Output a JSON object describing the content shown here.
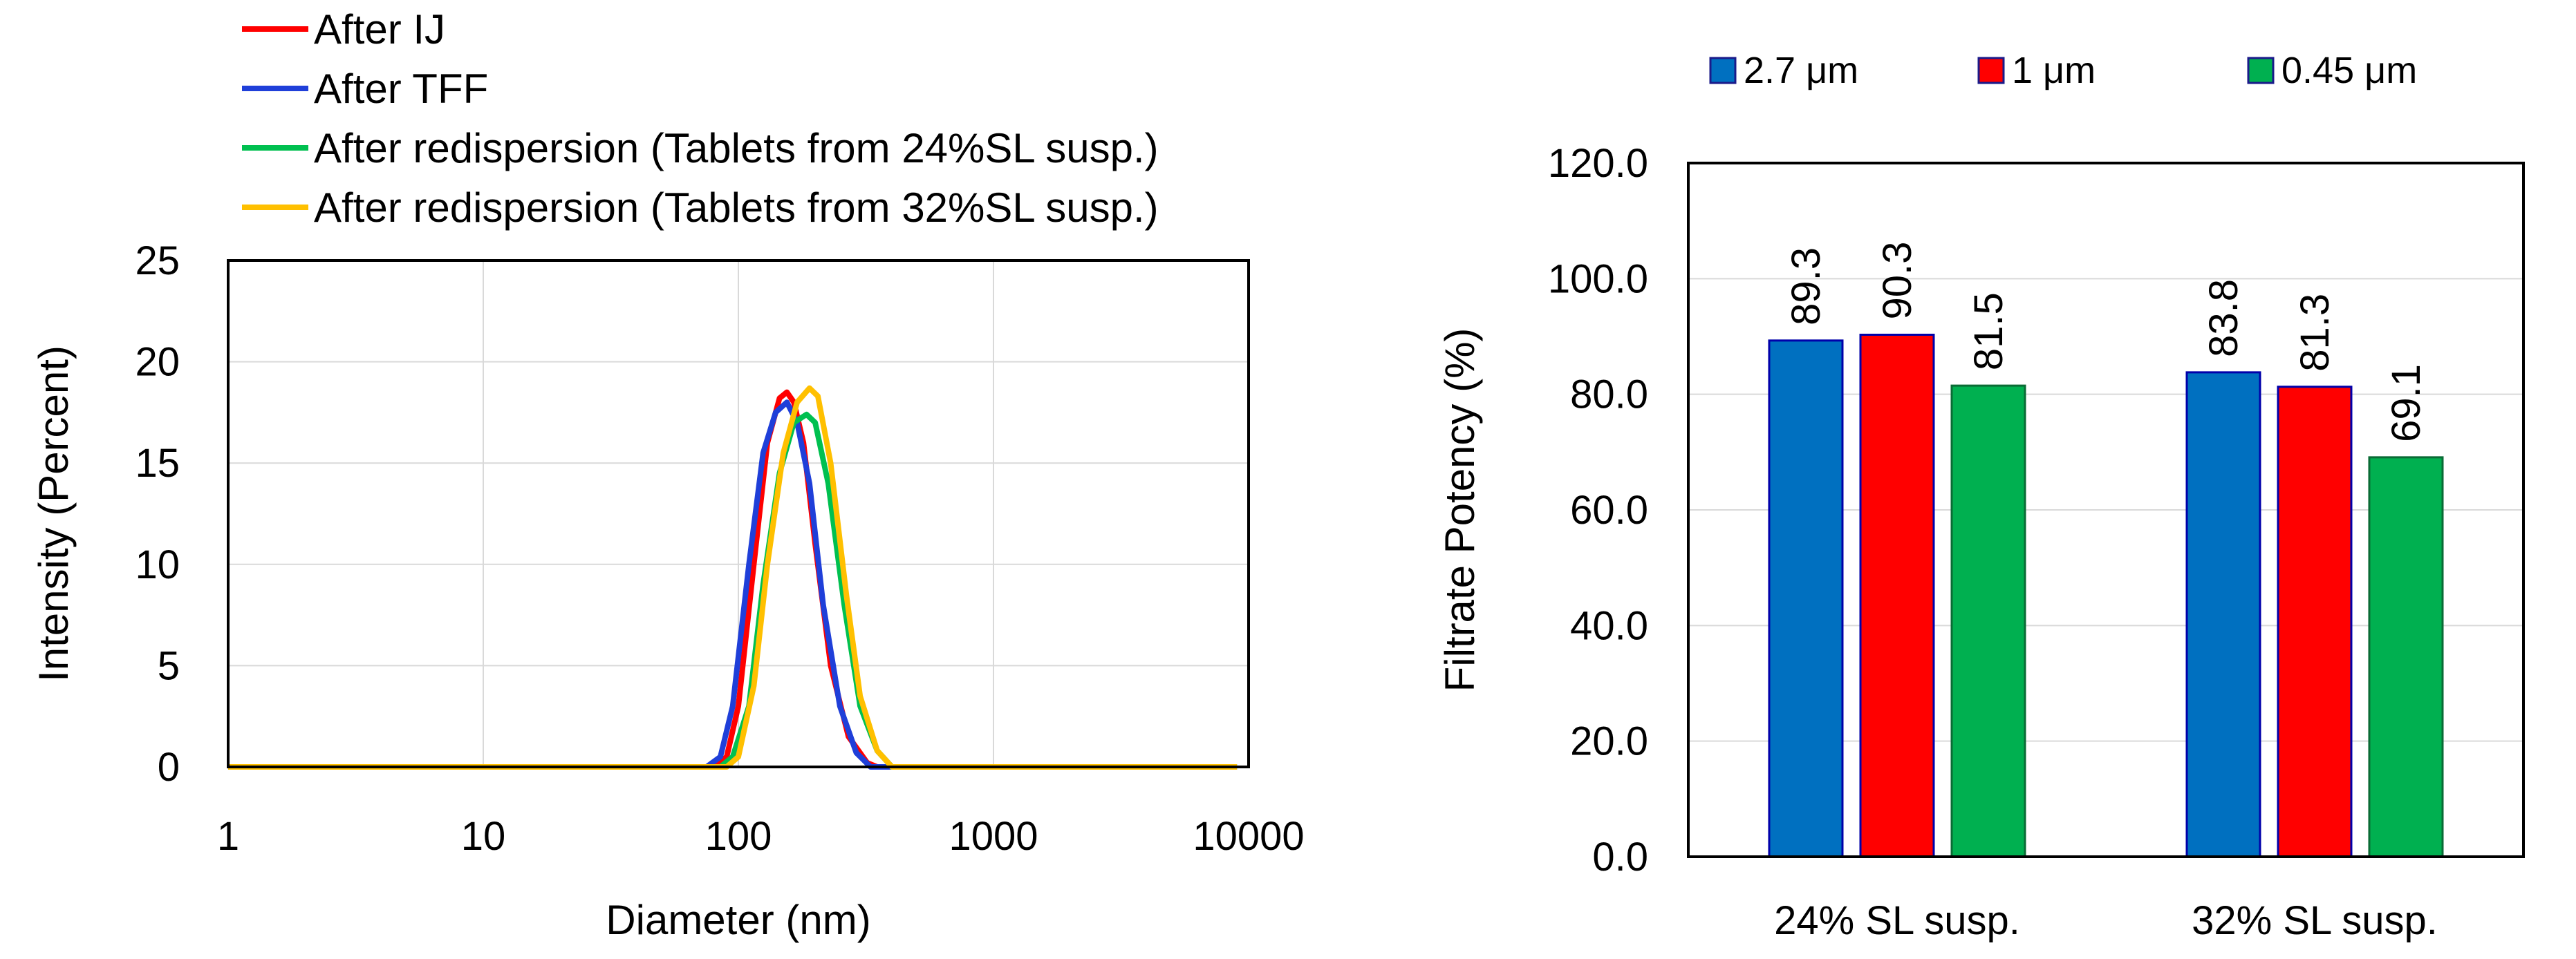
{
  "chart_data": [
    {
      "type": "line",
      "xlabel": "Diameter (nm)",
      "ylabel": "Intensity (Percent)",
      "xscale": "log",
      "xlim": [
        1,
        10000
      ],
      "ylim": [
        0,
        25
      ],
      "x_ticks": [
        "1",
        "10",
        "100",
        "1000",
        "10000"
      ],
      "y_ticks": [
        "0",
        "5",
        "10",
        "15",
        "20",
        "25"
      ],
      "grid": true,
      "legend_position": "top-left",
      "series": [
        {
          "name": "After IJ",
          "color": "#ff0000",
          "points": [
            [
              1,
              0
            ],
            [
              80,
              0
            ],
            [
              90,
              0.5
            ],
            [
              100,
              3
            ],
            [
              115,
              10
            ],
            [
              130,
              16
            ],
            [
              145,
              18.2
            ],
            [
              155,
              18.5
            ],
            [
              165,
              18
            ],
            [
              180,
              16
            ],
            [
              200,
              11
            ],
            [
              230,
              5
            ],
            [
              270,
              1.5
            ],
            [
              320,
              0.2
            ],
            [
              350,
              0
            ],
            [
              9000,
              0
            ]
          ]
        },
        {
          "name": "After TFF",
          "color": "#1f3fd9",
          "points": [
            [
              1,
              0
            ],
            [
              75,
              0
            ],
            [
              85,
              0.5
            ],
            [
              95,
              3
            ],
            [
              110,
              10
            ],
            [
              125,
              15.5
            ],
            [
              140,
              17.5
            ],
            [
              155,
              18
            ],
            [
              170,
              17
            ],
            [
              190,
              14
            ],
            [
              215,
              8
            ],
            [
              250,
              3
            ],
            [
              290,
              0.7
            ],
            [
              330,
              0
            ],
            [
              9000,
              0
            ]
          ]
        },
        {
          "name": "After redispersion (Tablets from 24%SL susp.)",
          "color": "#00c050",
          "points": [
            [
              1,
              0
            ],
            [
              85,
              0
            ],
            [
              95,
              0.5
            ],
            [
              110,
              3
            ],
            [
              125,
              9
            ],
            [
              145,
              14.5
            ],
            [
              165,
              17
            ],
            [
              185,
              17.4
            ],
            [
              200,
              17
            ],
            [
              225,
              14
            ],
            [
              260,
              8
            ],
            [
              300,
              3
            ],
            [
              350,
              0.8
            ],
            [
              400,
              0
            ],
            [
              9000,
              0
            ]
          ]
        },
        {
          "name": "After redispersion (Tablets from 32%SL susp.)",
          "color": "#ffc000",
          "points": [
            [
              1,
              0
            ],
            [
              90,
              0
            ],
            [
              100,
              0.5
            ],
            [
              115,
              4
            ],
            [
              130,
              10
            ],
            [
              150,
              15.5
            ],
            [
              170,
              18
            ],
            [
              190,
              18.7
            ],
            [
              205,
              18.3
            ],
            [
              230,
              15
            ],
            [
              265,
              8.5
            ],
            [
              300,
              3.5
            ],
            [
              350,
              0.8
            ],
            [
              400,
              0
            ],
            [
              9000,
              0
            ]
          ]
        }
      ]
    },
    {
      "type": "bar",
      "ylabel": "Filtrate Potency (%)",
      "xlabel": "",
      "ylim": [
        0,
        120
      ],
      "y_ticks": [
        "0.0",
        "20.0",
        "40.0",
        "60.0",
        "80.0",
        "100.0",
        "120.0"
      ],
      "grid": true,
      "legend_position": "top",
      "categories": [
        "24% SL susp.",
        "32% SL susp."
      ],
      "series": [
        {
          "name": "2.7 μm",
          "color": "#0070c0",
          "values": [
            89.3,
            83.8
          ],
          "labels": [
            "89.3",
            "83.8"
          ]
        },
        {
          "name": "1 μm",
          "color": "#ff0000",
          "values": [
            90.3,
            81.3
          ],
          "labels": [
            "90.3",
            "81.3"
          ]
        },
        {
          "name": "0.45  μm",
          "color": "#00b050",
          "values": [
            81.5,
            69.1
          ],
          "labels": [
            "81.5",
            "69.1"
          ]
        }
      ]
    }
  ]
}
